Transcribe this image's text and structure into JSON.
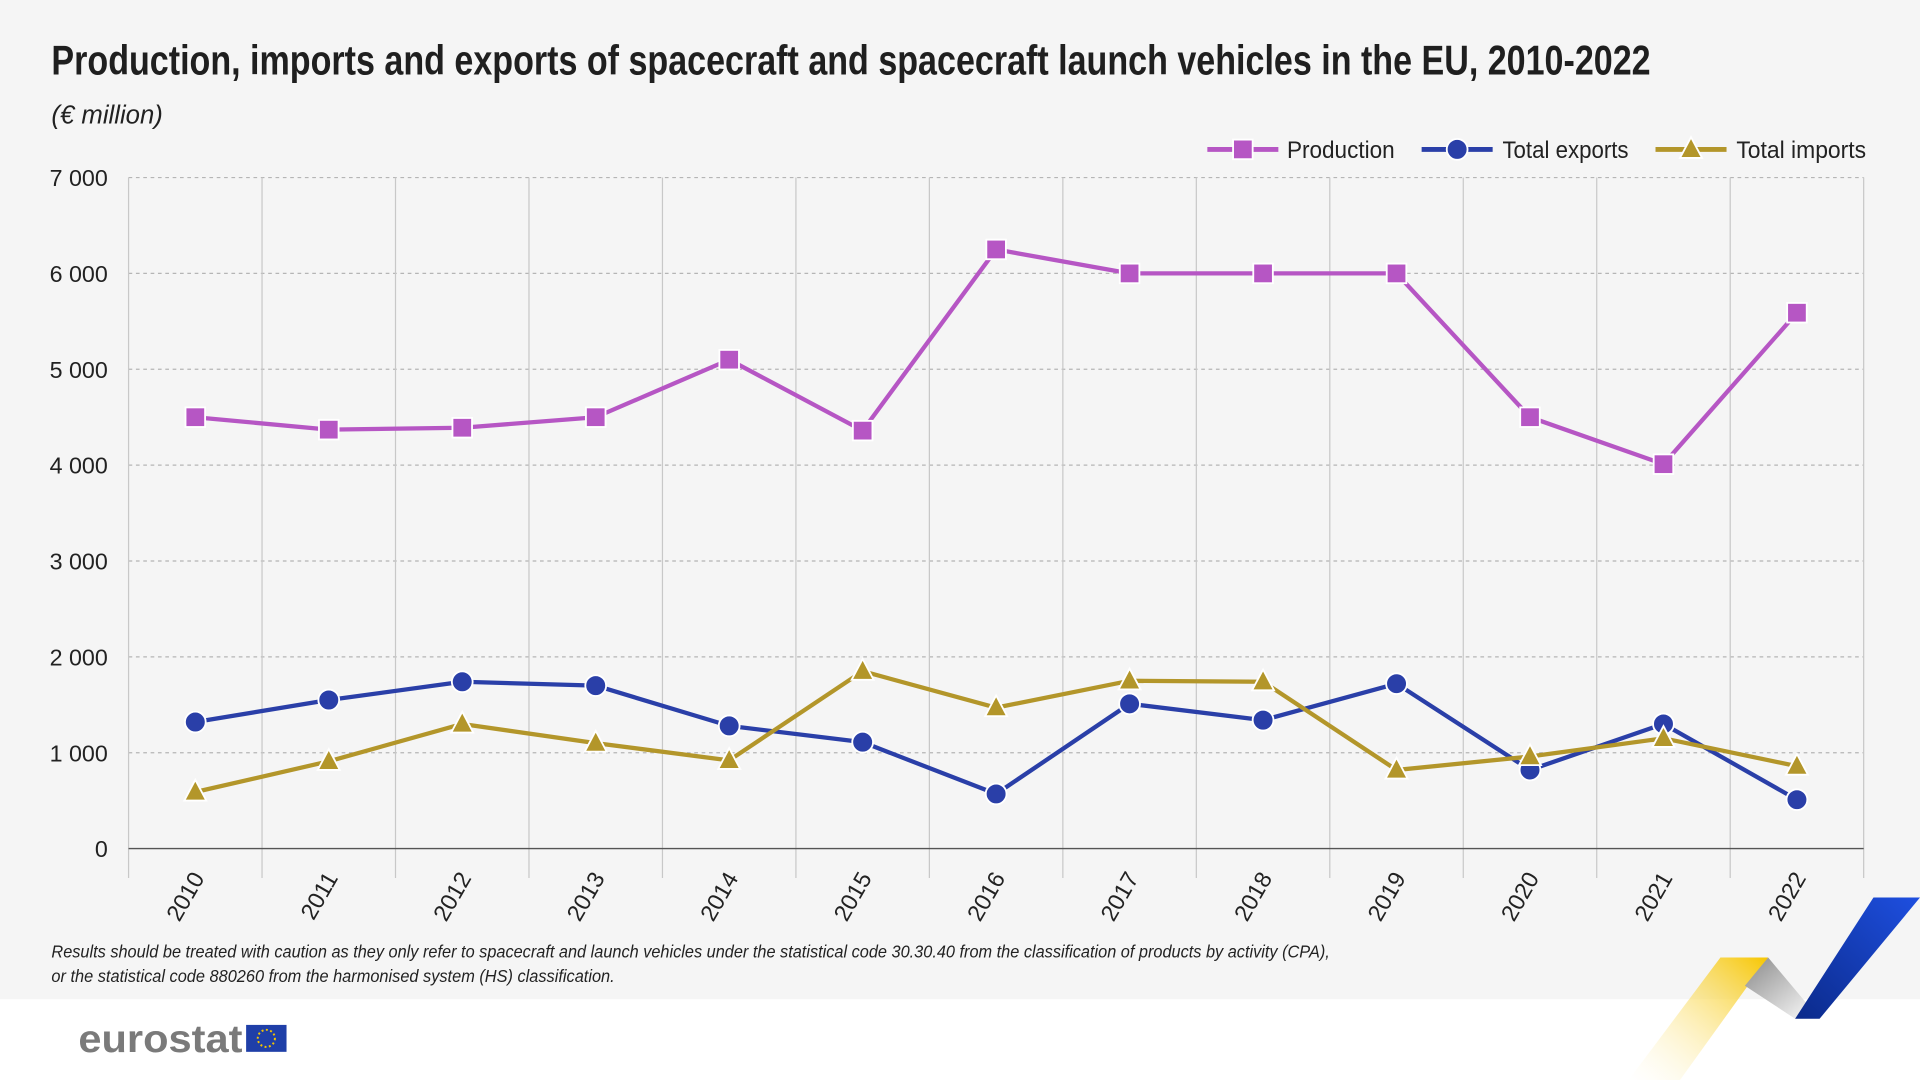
{
  "chart_data": {
    "type": "line",
    "title": "Production, imports and exports of spacecraft and spacecraft launch vehicles in the EU, 2010-2022",
    "subtitle": "(€ million)",
    "categories": [
      "2010",
      "2011",
      "2012",
      "2013",
      "2014",
      "2015",
      "2016",
      "2017",
      "2018",
      "2019",
      "2020",
      "2021",
      "2022"
    ],
    "ylim": [
      0,
      7000
    ],
    "yticks": [
      0,
      1000,
      2000,
      3000,
      4000,
      5000,
      6000,
      7000
    ],
    "ytick_labels": [
      "0",
      "1 000",
      "2 000",
      "3 000",
      "4 000",
      "5 000",
      "6 000",
      "7 000"
    ],
    "grid": true,
    "legend_placement": "top-right",
    "series": [
      {
        "name": "Production",
        "color": "#b656c4",
        "marker": "square",
        "values": [
          4500,
          4370,
          4390,
          4500,
          5100,
          4360,
          6250,
          6000,
          6000,
          6000,
          4500,
          4010,
          5590
        ]
      },
      {
        "name": "Total exports",
        "color": "#2a3fa8",
        "marker": "circle",
        "values": [
          1320,
          1550,
          1740,
          1700,
          1280,
          1110,
          570,
          1510,
          1340,
          1720,
          820,
          1300,
          510
        ]
      },
      {
        "name": "Total imports",
        "color": "#b3962a",
        "marker": "triangle",
        "values": [
          590,
          910,
          1300,
          1100,
          920,
          1850,
          1470,
          1750,
          1740,
          820,
          960,
          1150,
          860
        ]
      }
    ],
    "footnote": [
      "Results should be treated with caution as they only refer to spacecraft and launch vehicles under the statistical code 30.30.40 from the classification of products by activity (CPA),",
      "or the statistical code 880260 from the harmonised system (HS) classification."
    ]
  },
  "branding": {
    "logo_text": "eurostat",
    "flag_color": "#1f3fa8",
    "star_color": "#f2c400"
  }
}
